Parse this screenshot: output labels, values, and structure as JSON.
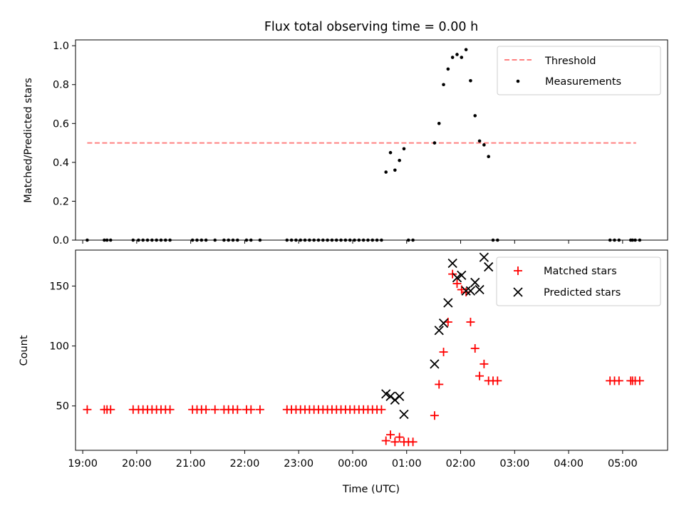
{
  "figure": {
    "title": "Flux total observing time = 0.00 h",
    "xlabel": "Time (UTC)"
  },
  "chart_data": [
    {
      "type": "scatter",
      "ylabel": "Matched/Predicted stars",
      "xlim": [
        "18:52",
        "05:50"
      ],
      "ylim": [
        0,
        1.03
      ],
      "yticks": [
        "0.0",
        "0.2",
        "0.4",
        "0.6",
        "0.8",
        "1.0"
      ],
      "xticks": [
        "19:00",
        "20:00",
        "21:00",
        "22:00",
        "23:00",
        "00:00",
        "01:00",
        "02:00",
        "03:00",
        "04:00",
        "05:00"
      ],
      "legend": "upper right",
      "series": [
        {
          "name": "Threshold",
          "kind": "line",
          "color": "#ff8080",
          "dash": true,
          "x": [
            "19:05",
            "05:15"
          ],
          "y": [
            0.5,
            0.5
          ]
        },
        {
          "name": "Measurements",
          "kind": "points",
          "color": "#000000",
          "x": [
            "19:05",
            "19:24",
            "19:27",
            "19:31",
            "19:56",
            "20:02",
            "20:07",
            "20:12",
            "20:17",
            "20:22",
            "20:27",
            "20:32",
            "20:37",
            "21:02",
            "21:07",
            "21:12",
            "21:17",
            "21:27",
            "21:37",
            "21:42",
            "21:47",
            "21:52",
            "22:02",
            "22:07",
            "22:17",
            "22:47",
            "22:52",
            "22:57",
            "23:02",
            "23:07",
            "23:12",
            "23:17",
            "23:22",
            "23:27",
            "23:32",
            "23:37",
            "23:42",
            "23:47",
            "23:52",
            "23:57",
            "00:02",
            "00:07",
            "00:12",
            "00:17",
            "00:22",
            "00:27",
            "00:32",
            "00:37",
            "00:42",
            "00:47",
            "00:52",
            "00:57",
            "01:02",
            "01:07",
            "01:31",
            "01:36",
            "01:41",
            "01:46",
            "01:51",
            "01:56",
            "02:01",
            "02:06",
            "02:11",
            "02:16",
            "02:21",
            "02:26",
            "02:31",
            "02:36",
            "02:41",
            "04:46",
            "04:51",
            "04:56",
            "05:09",
            "05:11",
            "05:14",
            "05:19"
          ],
          "y": [
            0,
            0,
            0,
            0,
            0,
            0,
            0,
            0,
            0,
            0,
            0,
            0,
            0,
            0,
            0,
            0,
            0,
            0,
            0,
            0,
            0,
            0,
            0,
            0,
            0,
            0,
            0,
            0,
            0,
            0,
            0,
            0,
            0,
            0,
            0,
            0,
            0,
            0,
            0,
            0,
            0,
            0,
            0,
            0,
            0,
            0,
            0,
            0.35,
            0.45,
            0.36,
            0.41,
            0.47,
            0,
            0,
            0.5,
            0.6,
            0.8,
            0.88,
            0.94,
            0.955,
            0.94,
            0.98,
            0.82,
            0.64,
            0.51,
            0.49,
            0.43,
            0,
            0,
            0,
            0,
            0,
            0,
            0,
            0,
            0
          ]
        }
      ]
    },
    {
      "type": "scatter",
      "ylabel": "Count",
      "xlim": [
        "18:52",
        "05:50"
      ],
      "ylim": [
        13,
        180
      ],
      "yticks": [
        "50",
        "100",
        "150"
      ],
      "xticks": [
        "19:00",
        "20:00",
        "21:00",
        "22:00",
        "23:00",
        "00:00",
        "01:00",
        "02:00",
        "03:00",
        "04:00",
        "05:00"
      ],
      "legend": "upper right",
      "series": [
        {
          "name": "Matched stars",
          "marker": "plus",
          "color": "#ff0000",
          "x": [
            "19:05",
            "19:24",
            "19:27",
            "19:31",
            "19:56",
            "20:02",
            "20:07",
            "20:12",
            "20:17",
            "20:22",
            "20:27",
            "20:32",
            "20:37",
            "21:02",
            "21:07",
            "21:12",
            "21:17",
            "21:27",
            "21:37",
            "21:42",
            "21:47",
            "21:52",
            "22:02",
            "22:07",
            "22:17",
            "22:47",
            "22:52",
            "22:57",
            "23:02",
            "23:07",
            "23:12",
            "23:17",
            "23:22",
            "23:27",
            "23:32",
            "23:37",
            "23:42",
            "23:47",
            "23:52",
            "23:57",
            "00:02",
            "00:07",
            "00:12",
            "00:17",
            "00:22",
            "00:27",
            "00:32",
            "00:37",
            "00:42",
            "00:47",
            "00:52",
            "00:57",
            "01:02",
            "01:07",
            "01:31",
            "01:36",
            "01:41",
            "01:46",
            "01:51",
            "01:56",
            "02:01",
            "02:06",
            "02:11",
            "02:16",
            "02:21",
            "02:26",
            "02:31",
            "02:36",
            "02:41",
            "04:46",
            "04:51",
            "04:56",
            "05:09",
            "05:11",
            "05:14",
            "05:19"
          ],
          "y": [
            47,
            47,
            47,
            47,
            47,
            47,
            47,
            47,
            47,
            47,
            47,
            47,
            47,
            47,
            47,
            47,
            47,
            47,
            47,
            47,
            47,
            47,
            47,
            47,
            47,
            47,
            47,
            47,
            47,
            47,
            47,
            47,
            47,
            47,
            47,
            47,
            47,
            47,
            47,
            47,
            47,
            47,
            47,
            47,
            47,
            47,
            47,
            21,
            26,
            20,
            24,
            20,
            20,
            20,
            42,
            68,
            95,
            120,
            160,
            152,
            147,
            145,
            120,
            98,
            75,
            85,
            71,
            71,
            71,
            71,
            71,
            71,
            71,
            71,
            71,
            71
          ]
        },
        {
          "name": "Predicted stars",
          "marker": "x",
          "color": "#000000",
          "x": [
            "00:37",
            "00:42",
            "00:47",
            "00:52",
            "00:57",
            "01:31",
            "01:36",
            "01:41",
            "01:46",
            "01:51",
            "01:56",
            "02:01",
            "02:06",
            "02:11",
            "02:16",
            "02:21",
            "02:26",
            "02:31"
          ],
          "y": [
            60,
            58,
            55,
            58,
            43,
            85,
            113,
            119,
            136,
            169,
            157,
            159,
            146,
            146,
            153,
            147,
            174,
            166
          ]
        }
      ]
    }
  ]
}
